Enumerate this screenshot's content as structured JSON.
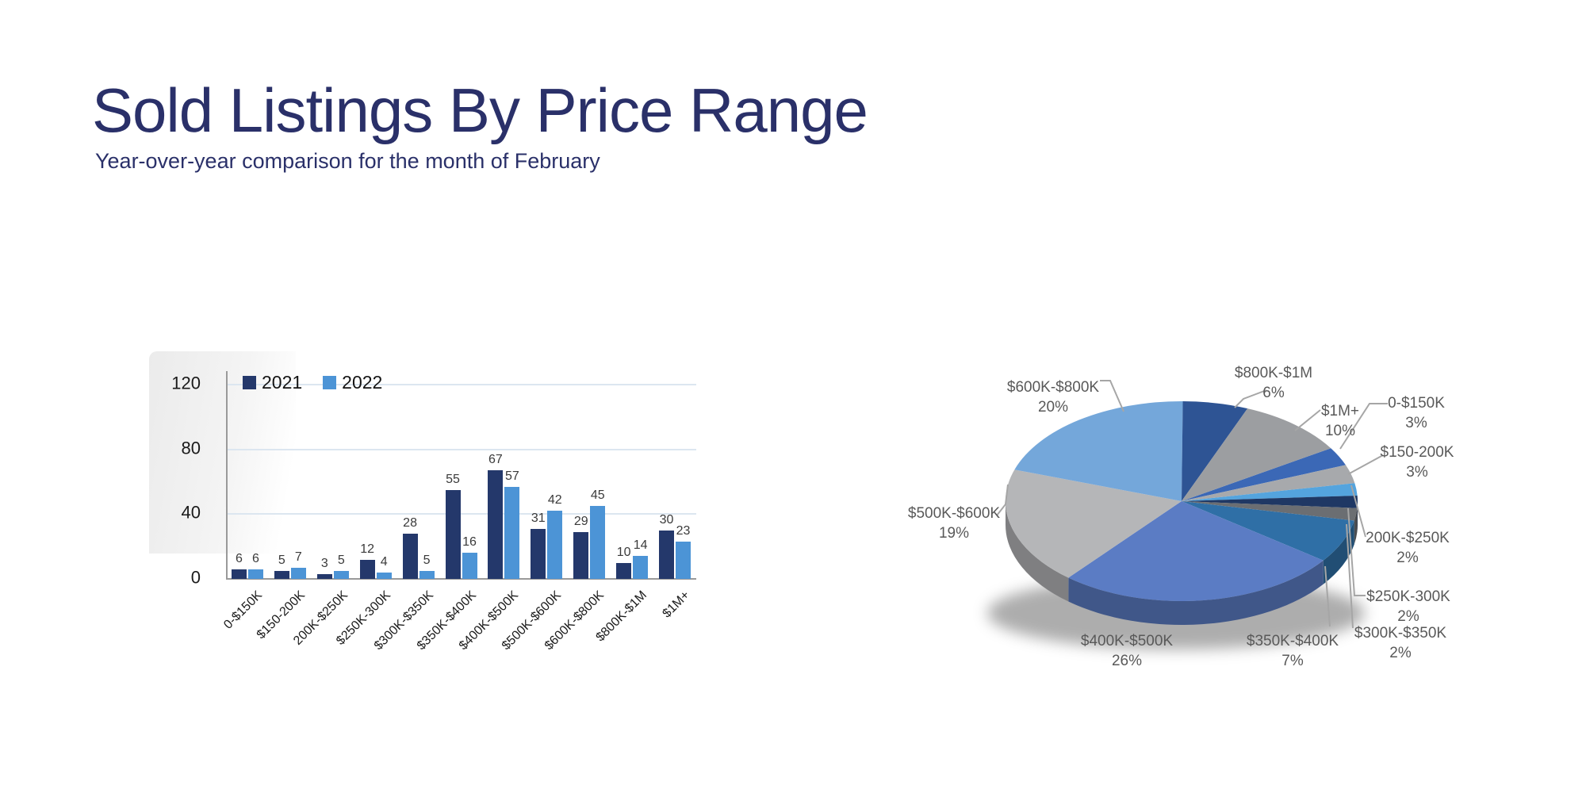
{
  "page": {
    "title": "Sold Listings By Price Range",
    "subtitle": "Year-over-year comparison for the month of February"
  },
  "colors": {
    "title_text": "#2A3069",
    "grid_line": "#DCE6F0",
    "axis_line": "#9A9A9A",
    "tick_text": "#1A1A1A",
    "bar_value_text": "#3A3A3A",
    "pie_label_text": "#595959",
    "callout_line": "#A6A6A6"
  },
  "chart_data": [
    {
      "type": "bar",
      "title": "",
      "categories": [
        "0-$150K",
        "$150-200K",
        "200K-$250K",
        "$250K-300K",
        "$300K-$350K",
        "$350K-$400K",
        "$400K-$500K",
        "$500K-$600K",
        "$600K-$800K",
        "$800K-$1M",
        "$1M+"
      ],
      "series": [
        {
          "name": "2021",
          "color": "#24386B",
          "values": [
            6,
            5,
            3,
            12,
            28,
            55,
            67,
            31,
            29,
            10,
            30
          ]
        },
        {
          "name": "2022",
          "color": "#4C94D6",
          "values": [
            6,
            7,
            5,
            4,
            5,
            16,
            57,
            42,
            45,
            14,
            23
          ]
        }
      ],
      "xlabel": "",
      "ylabel": "",
      "ylim": [
        0,
        120
      ],
      "yticks": [
        0,
        40,
        80,
        120
      ],
      "grid": true,
      "legend_position": "top-left",
      "value_labels": true
    },
    {
      "type": "pie",
      "style": "3d",
      "unit": "%",
      "labels": [
        "0-$150K",
        "$150-200K",
        "200K-$250K",
        "$250K-300K",
        "$300K-$350K",
        "$350K-$400K",
        "$400K-$500K",
        "$500K-$600K",
        "$600K-$800K",
        "$800K-$1M",
        "$1M+"
      ],
      "values": [
        3,
        3,
        2,
        2,
        2,
        7,
        26,
        19,
        20,
        6,
        10
      ],
      "colors": [
        "#3B68B6",
        "#A7A9AC",
        "#54A4DE",
        "#1F3864",
        "#6B6E72",
        "#2F6FA6",
        "#5B7CC4",
        "#B5B6B8",
        "#74A7DA",
        "#2E5494",
        "#9C9EA1"
      ],
      "start_angle_deg": 58,
      "legend_position": "none"
    }
  ]
}
